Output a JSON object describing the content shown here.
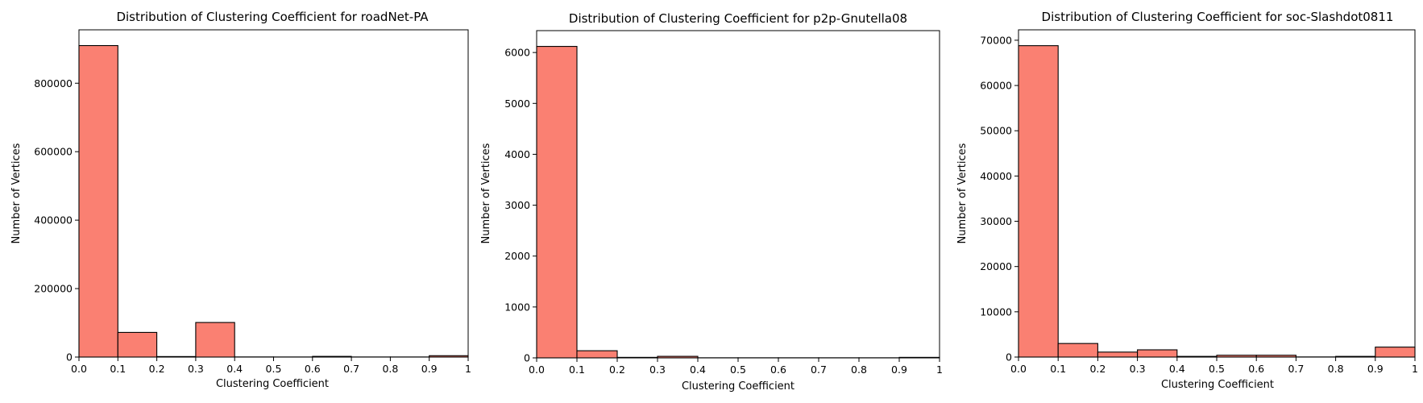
{
  "chart_data": [
    {
      "type": "bar",
      "title": "Distribution of Clustering Coefficient for roadNet-PA",
      "xlabel": "Clustering Coefficient",
      "ylabel": "Number of Vertices",
      "xlim": [
        0,
        1
      ],
      "ylim": [
        0,
        956000
      ],
      "bin_edges": [
        0,
        0.1,
        0.2,
        0.3,
        0.4,
        0.5,
        0.6,
        0.7,
        0.8,
        0.9,
        1.0
      ],
      "values": [
        910000,
        72000,
        1500,
        101000,
        400,
        300,
        2000,
        300,
        300,
        4000
      ],
      "xticks": [
        "0.0",
        "0.1",
        "0.2",
        "0.3",
        "0.4",
        "0.5",
        "0.6",
        "0.7",
        "0.8",
        "0.9",
        "1"
      ],
      "yticks": [
        0,
        200000,
        400000,
        600000,
        800000
      ],
      "ytick_labels": [
        "0",
        "200000",
        "400000",
        "600000",
        "800000"
      ],
      "bar_color": "#FA8072",
      "grid": false,
      "legend": "none"
    },
    {
      "type": "bar",
      "title": "Distribution of Clustering Coefficient for p2p-Gnutella08",
      "xlabel": "Clustering Coefficient",
      "ylabel": "Number of Vertices",
      "xlim": [
        0,
        1
      ],
      "ylim": [
        0,
        6430
      ],
      "bin_edges": [
        0,
        0.1,
        0.2,
        0.3,
        0.4,
        0.5,
        0.6,
        0.7,
        0.8,
        0.9,
        1.0
      ],
      "values": [
        6120,
        140,
        10,
        30,
        2,
        2,
        2,
        2,
        2,
        10
      ],
      "xticks": [
        "0.0",
        "0.1",
        "0.2",
        "0.3",
        "0.4",
        "0.5",
        "0.6",
        "0.7",
        "0.8",
        "0.9",
        "1"
      ],
      "yticks": [
        0,
        1000,
        2000,
        3000,
        4000,
        5000,
        6000
      ],
      "ytick_labels": [
        "0",
        "1000",
        "2000",
        "3000",
        "4000",
        "5000",
        "6000"
      ],
      "bar_color": "#FA8072",
      "grid": false,
      "legend": "none"
    },
    {
      "type": "bar",
      "title": "Distribution of Clustering Coefficient for soc-Slashdot0811",
      "xlabel": "Clustering Coefficient",
      "ylabel": "Number of Vertices",
      "xlim": [
        0,
        1
      ],
      "ylim": [
        0,
        72300
      ],
      "bin_edges": [
        0,
        0.1,
        0.2,
        0.3,
        0.4,
        0.5,
        0.6,
        0.7,
        0.8,
        0.9,
        1.0
      ],
      "values": [
        68800,
        3000,
        1100,
        1600,
        150,
        400,
        400,
        30,
        150,
        2200
      ],
      "xticks": [
        "0.0",
        "0.1",
        "0.2",
        "0.3",
        "0.4",
        "0.5",
        "0.6",
        "0.7",
        "0.8",
        "0.9",
        "1"
      ],
      "yticks": [
        0,
        10000,
        20000,
        30000,
        40000,
        50000,
        60000,
        70000
      ],
      "ytick_labels": [
        "0",
        "10000",
        "20000",
        "30000",
        "40000",
        "50000",
        "60000",
        "70000"
      ],
      "bar_color": "#FA8072",
      "grid": false,
      "legend": "none"
    }
  ]
}
